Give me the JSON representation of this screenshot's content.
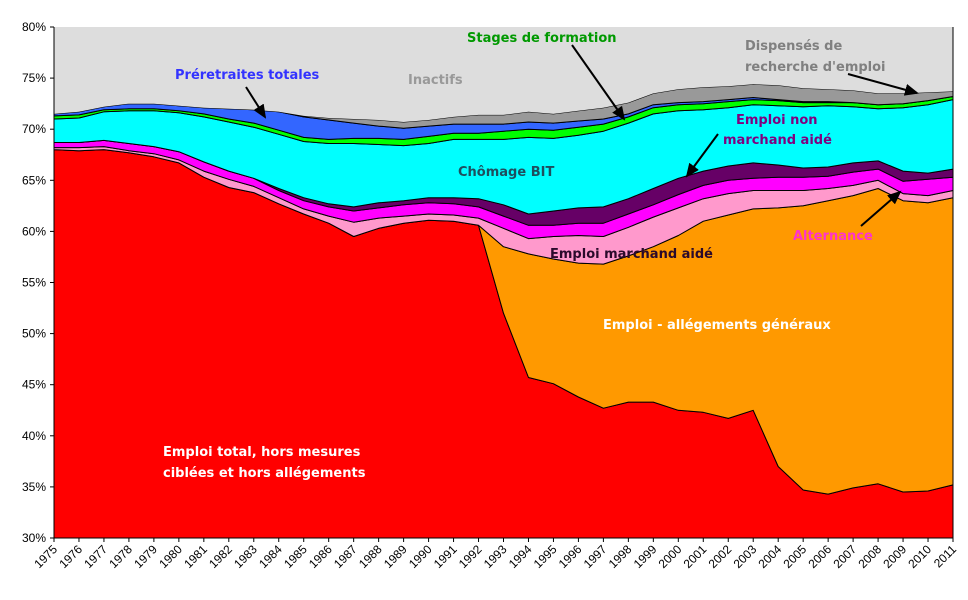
{
  "chart_data": {
    "type": "area",
    "stacked": true,
    "title": "",
    "xlabel": "",
    "ylabel": "",
    "ylim": [
      30,
      80
    ],
    "y_tick_labels": [
      "30%",
      "35%",
      "40%",
      "45%",
      "50%",
      "55%",
      "60%",
      "65%",
      "70%",
      "75%",
      "80%"
    ],
    "y_ticks": [
      30,
      35,
      40,
      45,
      50,
      55,
      60,
      65,
      70,
      75,
      80
    ],
    "grid": false,
    "legend": "none (inline annotations)",
    "categories": [
      "1975",
      "1976",
      "1977",
      "1978",
      "1979",
      "1980",
      "1981",
      "1982",
      "1983",
      "1984",
      "1985",
      "1986",
      "1987",
      "1988",
      "1989",
      "1990",
      "1991",
      "1992",
      "1993",
      "1994",
      "1995",
      "1996",
      "1997",
      "1998",
      "1999",
      "2000",
      "2001",
      "2002",
      "2003",
      "2004",
      "2005",
      "2006",
      "2007",
      "2008",
      "2009",
      "2010",
      "2011"
    ],
    "note": "Values are cumulative upper boundaries (%) of each stacked layer, bottom to top.",
    "series": [
      {
        "name": "Emploi total, hors mesures ciblées et hors allégements",
        "color": "#ff0000",
        "cumulative": [
          68.0,
          67.9,
          68.0,
          67.7,
          67.3,
          66.7,
          65.3,
          64.3,
          63.8,
          62.7,
          61.7,
          60.8,
          59.5,
          60.3,
          60.8,
          61.1,
          61.0,
          60.6,
          52.0,
          45.7,
          45.1,
          43.8,
          42.7,
          43.3,
          43.3,
          42.5,
          42.3,
          41.7,
          42.5,
          37.0,
          34.7,
          34.3,
          34.9,
          35.3,
          34.5,
          34.6,
          35.2
        ]
      },
      {
        "name": "Emploi - allégements généraux",
        "color": "#ff9900",
        "cumulative": [
          68.0,
          67.9,
          68.0,
          67.7,
          67.3,
          66.7,
          65.3,
          64.3,
          63.8,
          62.7,
          61.7,
          60.8,
          59.5,
          60.3,
          60.8,
          61.1,
          61.0,
          60.6,
          58.5,
          57.8,
          57.3,
          56.9,
          56.8,
          57.6,
          58.5,
          59.6,
          61.0,
          61.6,
          62.2,
          62.3,
          62.5,
          63.0,
          63.5,
          64.2,
          63.0,
          62.8,
          63.3
        ]
      },
      {
        "name": "Emploi marchand aidé",
        "color": "#ff99cc",
        "cumulative": [
          68.2,
          68.2,
          68.3,
          67.9,
          67.6,
          67.0,
          65.9,
          65.1,
          64.4,
          63.3,
          62.2,
          61.5,
          60.9,
          61.3,
          61.5,
          61.7,
          61.6,
          61.3,
          60.3,
          59.3,
          59.5,
          59.6,
          59.5,
          60.4,
          61.4,
          62.3,
          63.2,
          63.7,
          64.0,
          64.0,
          64.0,
          64.2,
          64.5,
          65.0,
          63.7,
          63.5,
          64.0
        ]
      },
      {
        "name": "Alternance",
        "color": "#ff00ff",
        "cumulative": [
          68.7,
          68.7,
          68.9,
          68.6,
          68.3,
          67.8,
          66.8,
          65.9,
          65.2,
          64.0,
          63.0,
          62.4,
          62.0,
          62.3,
          62.6,
          62.8,
          62.7,
          62.4,
          61.5,
          60.6,
          60.6,
          60.8,
          60.8,
          61.7,
          62.6,
          63.6,
          64.5,
          65.0,
          65.2,
          65.3,
          65.3,
          65.4,
          65.8,
          66.1,
          64.9,
          65.1,
          65.3
        ]
      },
      {
        "name": "Emploi non marchand aidé",
        "color": "#660066",
        "cumulative": [
          68.7,
          68.7,
          68.9,
          68.6,
          68.3,
          67.8,
          66.8,
          65.9,
          65.2,
          64.2,
          63.3,
          62.7,
          62.4,
          62.8,
          63.0,
          63.3,
          63.3,
          63.2,
          62.6,
          61.7,
          62.0,
          62.3,
          62.4,
          63.2,
          64.2,
          65.2,
          65.9,
          66.4,
          66.7,
          66.5,
          66.2,
          66.3,
          66.7,
          66.9,
          65.9,
          65.7,
          66.1
        ]
      },
      {
        "name": "Chômage BIT",
        "color": "#00ffff",
        "cumulative": [
          71.0,
          71.1,
          71.7,
          71.8,
          71.8,
          71.6,
          71.2,
          70.7,
          70.2,
          69.5,
          68.8,
          68.6,
          68.6,
          68.5,
          68.4,
          68.6,
          69.0,
          69.0,
          69.0,
          69.2,
          69.1,
          69.4,
          69.8,
          70.6,
          71.5,
          71.8,
          71.9,
          72.1,
          72.4,
          72.3,
          72.2,
          72.3,
          72.2,
          72.0,
          72.1,
          72.4,
          72.9
        ]
      },
      {
        "name": "Stages de formation",
        "color": "#00ff00",
        "cumulative": [
          71.3,
          71.4,
          71.9,
          72.0,
          72.0,
          71.8,
          71.5,
          71.0,
          70.6,
          69.9,
          69.2,
          69.0,
          69.1,
          69.1,
          69.0,
          69.3,
          69.6,
          69.6,
          69.8,
          70.0,
          69.9,
          70.2,
          70.5,
          71.2,
          72.1,
          72.4,
          72.5,
          72.7,
          72.9,
          72.8,
          72.6,
          72.6,
          72.6,
          72.4,
          72.5,
          72.8,
          73.2
        ]
      },
      {
        "name": "Préretraites totales",
        "color": "#3366ff",
        "cumulative": [
          71.5,
          71.7,
          72.2,
          72.5,
          72.5,
          72.3,
          72.1,
          72.0,
          71.9,
          71.7,
          71.2,
          70.9,
          70.6,
          70.3,
          70.1,
          70.3,
          70.5,
          70.5,
          70.5,
          70.7,
          70.6,
          70.8,
          71.0,
          71.5,
          72.4,
          72.6,
          72.7,
          72.9,
          73.1,
          72.9,
          72.7,
          72.7,
          72.6,
          72.4,
          72.5,
          72.8,
          73.2
        ]
      },
      {
        "name": "Dispensés de recherche d'emploi",
        "color": "#999999",
        "cumulative": [
          71.5,
          71.7,
          72.2,
          72.5,
          72.5,
          72.3,
          72.1,
          72.0,
          71.9,
          71.7,
          71.3,
          71.1,
          71.0,
          70.9,
          70.7,
          70.9,
          71.2,
          71.4,
          71.4,
          71.7,
          71.5,
          71.8,
          72.1,
          72.6,
          73.5,
          73.9,
          74.1,
          74.2,
          74.4,
          74.3,
          74.0,
          73.9,
          73.8,
          73.5,
          73.5,
          73.6,
          73.7
        ]
      },
      {
        "name": "Inactifs",
        "color": "#dddddd",
        "cumulative": [
          80,
          80,
          80,
          80,
          80,
          80,
          80,
          80,
          80,
          80,
          80,
          80,
          80,
          80,
          80,
          80,
          80,
          80,
          80,
          80,
          80,
          80,
          80,
          80,
          80,
          80,
          80,
          80,
          80,
          80,
          80,
          80,
          80,
          80,
          80,
          80,
          80
        ]
      }
    ],
    "annotations": [
      {
        "text": "Préretraites totales",
        "color": "#3333ff",
        "arrow": true
      },
      {
        "text": "Inactifs",
        "color": "#999999",
        "arrow": false
      },
      {
        "text": "Stages de formation",
        "color": "#009900",
        "arrow": true
      },
      {
        "text": "Dispensés de",
        "color": "#808080",
        "arrow": false
      },
      {
        "text": "recherche d'emploi",
        "color": "#808080",
        "arrow": true
      },
      {
        "text": "Emploi non",
        "color": "#800080",
        "arrow": false
      },
      {
        "text": "marchand aidé",
        "color": "#800080",
        "arrow": true
      },
      {
        "text": "Chômage BIT",
        "color": "#1f4e5e",
        "arrow": false
      },
      {
        "text": "Emploi marchand aidé",
        "color": "#2b0a2b",
        "arrow": false
      },
      {
        "text": "Alternance",
        "color": "#ff33cc",
        "arrow": true
      },
      {
        "text": "Emploi  - allégements généraux",
        "color": "#ffffff",
        "arrow": false
      },
      {
        "text": "Emploi total, hors mesures",
        "color": "#ffffff",
        "arrow": false
      },
      {
        "text": "ciblées et hors allégements",
        "color": "#ffffff",
        "arrow": false
      }
    ]
  }
}
